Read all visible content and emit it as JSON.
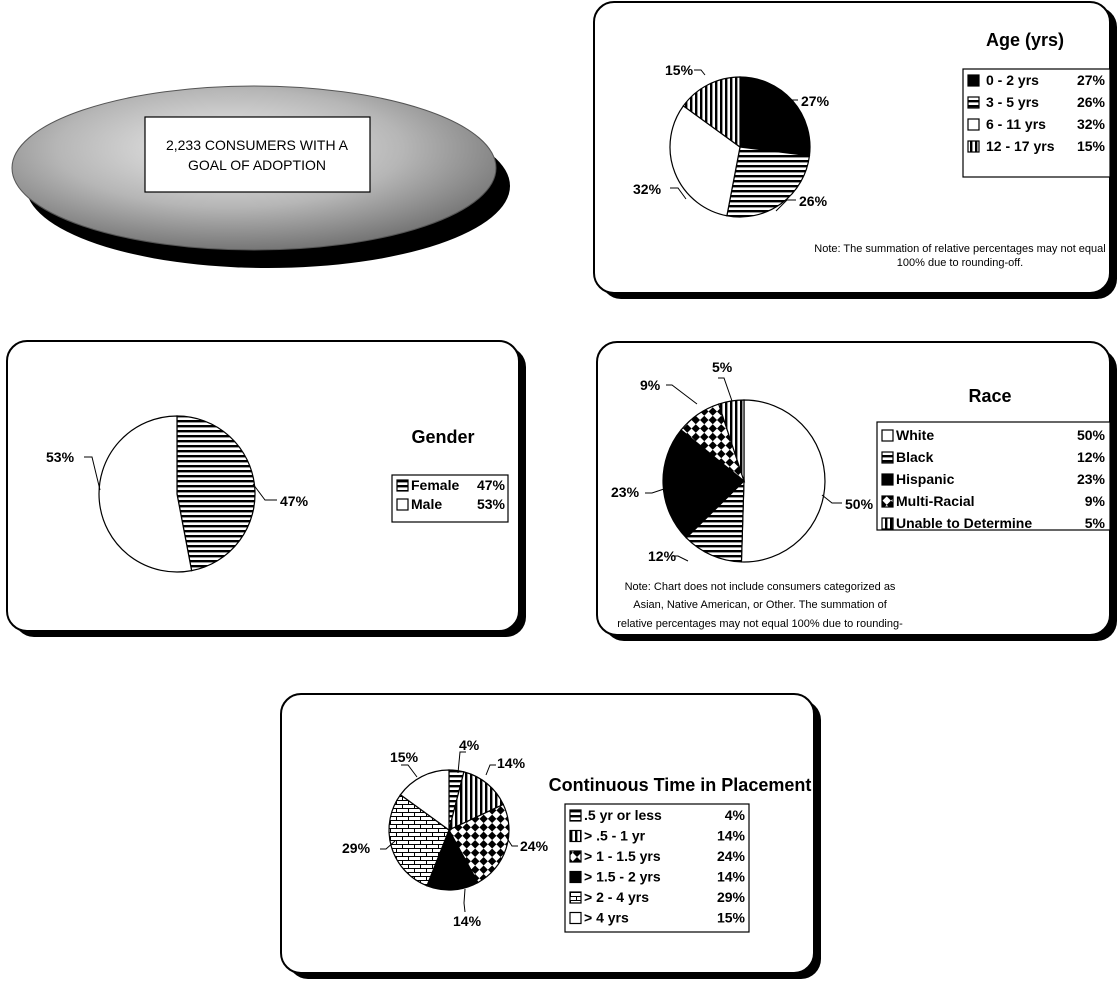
{
  "banner": {
    "line1": "2,233 CONSUMERS WITH A",
    "line2": "GOAL OF  ADOPTION"
  },
  "chart_data": [
    {
      "id": "age",
      "type": "pie",
      "title": "Age (yrs)",
      "slices": [
        {
          "name": "0 - 2 yrs",
          "value": 27,
          "label": "27%",
          "pattern": "solid"
        },
        {
          "name": "3 - 5 yrs",
          "value": 26,
          "label": "26%",
          "pattern": "hlines"
        },
        {
          "name": "6 - 11 yrs",
          "value": 32,
          "label": "32%",
          "pattern": "white"
        },
        {
          "name": "12 - 17 yrs",
          "value": 15,
          "label": "15%",
          "pattern": "vlines"
        }
      ],
      "note": [
        "Note: The summation of relative percentages may not equal",
        "100% due to rounding-off."
      ]
    },
    {
      "id": "gender",
      "type": "pie",
      "title": "Gender",
      "slices": [
        {
          "name": "Female",
          "value": 47,
          "label": "47%",
          "pattern": "hlines"
        },
        {
          "name": "Male",
          "value": 53,
          "label": "53%",
          "pattern": "white"
        }
      ]
    },
    {
      "id": "race",
      "type": "pie",
      "title": "Race",
      "slices": [
        {
          "name": "White",
          "value": 50,
          "label": "50%",
          "pattern": "white"
        },
        {
          "name": "Black",
          "value": 12,
          "label": "12%",
          "pattern": "hlines"
        },
        {
          "name": "Hispanic",
          "value": 23,
          "label": "23%",
          "pattern": "solid"
        },
        {
          "name": "Multi-Racial",
          "value": 9,
          "label": "9%",
          "pattern": "checker"
        },
        {
          "name": "Unable to Determine",
          "value": 5,
          "label": "5%",
          "pattern": "vlines"
        }
      ],
      "note": [
        "Note: Chart does not include consumers categorized as",
        "Asian, Native American, or Other.  The summation of",
        "relative percentages may not equal 100% due to rounding-"
      ]
    },
    {
      "id": "placement",
      "type": "pie",
      "title": "Continuous Time in Placement",
      "slices": [
        {
          "name": ".5 yr or less",
          "value": 4,
          "label": "4%",
          "pattern": "hlines"
        },
        {
          "name": "> .5 - 1 yr",
          "value": 14,
          "label": "14%",
          "pattern": "vlines"
        },
        {
          "name": "> 1 - 1.5 yrs",
          "value": 24,
          "label": "24%",
          "pattern": "checker"
        },
        {
          "name": "> 1.5 - 2 yrs",
          "value": 14,
          "label": "14%",
          "pattern": "solid"
        },
        {
          "name": "> 2 - 4 yrs",
          "value": 29,
          "label": "29%",
          "pattern": "brick"
        },
        {
          "name": "> 4 yrs",
          "value": 15,
          "label": "15%",
          "pattern": "white"
        }
      ]
    }
  ]
}
